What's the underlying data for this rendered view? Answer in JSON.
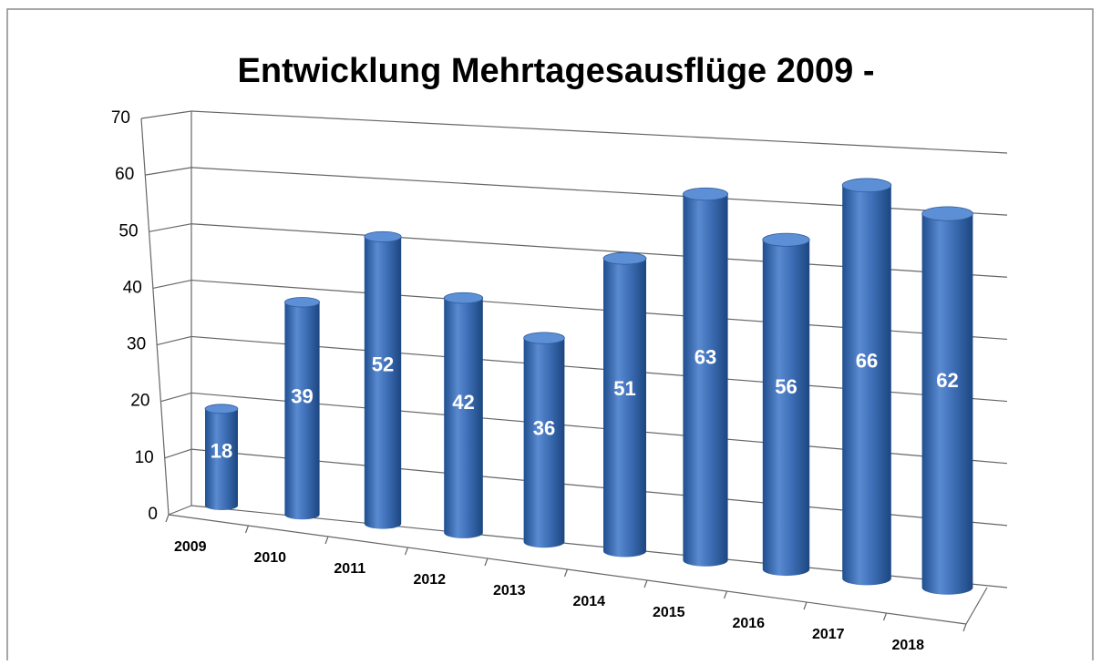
{
  "chart_data": {
    "type": "bar",
    "title": "Entwicklung Mehrtagesausflüge  2009 -",
    "categories": [
      "2009",
      "2010",
      "2011",
      "2012",
      "2013",
      "2014",
      "2015",
      "2016",
      "2017",
      "2018"
    ],
    "values": [
      18,
      39,
      52,
      42,
      36,
      51,
      63,
      56,
      66,
      62
    ],
    "color": "#4a7bc4",
    "ylim": [
      0,
      70
    ],
    "yticks": [
      0,
      10,
      20,
      30,
      40,
      50,
      60,
      70
    ],
    "grid": true
  }
}
